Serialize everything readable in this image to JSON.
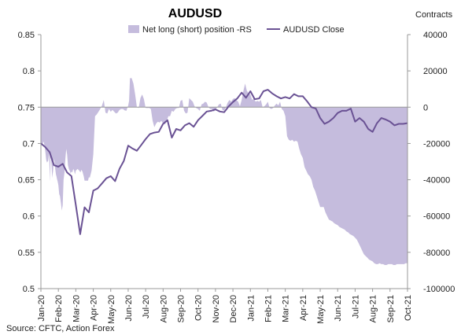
{
  "chart_data": {
    "type": "line",
    "title": "AUDUSD",
    "right_axis_label": "Contracts",
    "source": "Source: CFTC, Action Forex",
    "left_axis": {
      "min": 0.5,
      "max": 0.85,
      "ticks": [
        "0.5",
        "0.55",
        "0.6",
        "0.65",
        "0.7",
        "0.75",
        "0.8",
        "0.85"
      ]
    },
    "right_axis": {
      "min": -100000,
      "max": 40000,
      "ticks": [
        "-100000",
        "-80000",
        "-60000",
        "-40000",
        "-20000",
        "0",
        "20000",
        "40000"
      ]
    },
    "x_tick_labels": [
      "Jan-20",
      "Feb-20",
      "Mar-20",
      "Apr-20",
      "May-20",
      "Jun-20",
      "Jul-20",
      "Aug-20",
      "Sep-20",
      "Oct-20",
      "Nov-20",
      "Dec-20",
      "Jan-21",
      "Feb-21",
      "Mar-21",
      "Apr-21",
      "May-21",
      "Jun-21",
      "Jul-21",
      "Aug-21",
      "Sep-21",
      "Oct-21"
    ],
    "legend": {
      "position": "top",
      "area_name": "Net long (short) position -RS",
      "line_name": "AUDUSD Close"
    },
    "colors": {
      "area": "#c5bcdd",
      "line": "#6a5294",
      "axis": "#999999"
    },
    "series": [
      {
        "name": "Net long (short) position -RS",
        "type": "area",
        "axis": "right",
        "t": [
          0,
          0.04,
          0.16,
          0.22,
          0.27,
          0.3,
          0.35,
          0.42,
          0.47,
          0.52,
          0.56,
          0.61,
          0.65,
          0.7,
          0.74,
          0.78,
          0.82,
          0.86,
          0.89,
          0.92,
          0.96,
          1.0,
          1.05,
          1.09,
          1.15,
          1.2,
          1.25,
          1.3,
          1.35,
          1.4,
          1.45,
          1.5,
          1.55,
          1.6,
          1.65,
          1.7,
          1.75,
          1.8,
          1.85,
          1.9,
          1.95,
          2.0,
          2.05,
          2.1,
          2.2,
          2.26,
          2.32,
          2.38,
          2.45,
          2.5,
          2.6,
          2.7,
          2.75,
          2.8,
          2.9,
          3.0,
          3.1,
          3.2,
          3.3,
          3.4,
          3.5,
          3.6,
          3.7,
          3.8,
          3.9,
          4.0,
          4.1,
          4.2,
          4.3,
          4.4,
          4.5,
          4.6,
          4.7,
          4.8,
          4.9,
          5.0,
          5.05,
          5.1,
          5.2,
          5.3,
          5.4,
          5.5,
          5.6,
          5.7,
          5.8,
          5.9,
          6.0,
          6.1,
          6.2,
          6.3,
          6.4,
          6.5,
          6.6,
          6.7,
          6.8,
          6.9,
          7.0,
          7.1,
          7.2,
          7.3,
          7.4,
          7.5,
          7.6,
          7.7,
          7.8,
          7.9,
          8.0,
          8.1,
          8.2,
          8.3,
          8.4,
          8.5,
          8.6,
          8.7,
          8.8,
          8.9,
          9.0,
          9.1,
          9.2,
          9.3,
          9.4,
          9.5,
          9.6,
          9.7,
          9.8,
          9.9,
          10.0,
          10.1,
          10.2,
          10.3,
          10.4,
          10.5,
          10.6,
          10.7,
          10.8,
          10.9,
          11.0,
          11.1,
          11.2,
          11.3,
          11.4,
          11.5,
          11.6,
          11.7,
          11.8,
          11.9,
          12.0,
          12.1,
          12.2,
          12.3,
          12.4,
          12.5,
          12.6,
          12.7,
          12.8,
          12.9,
          13.0,
          13.1,
          13.2,
          13.3,
          13.4,
          13.5,
          13.6,
          13.7,
          13.8,
          13.9,
          14.0,
          14.1,
          14.2,
          14.3,
          14.4,
          14.5,
          14.6,
          14.7,
          14.8,
          14.9,
          15.0,
          15.1,
          15.2,
          15.3,
          15.4,
          15.5,
          15.6,
          15.7,
          15.8,
          15.9,
          16.0,
          16.1,
          16.2,
          16.3,
          16.4,
          16.5,
          16.6,
          16.7,
          16.8,
          16.9,
          17.0,
          17.1,
          17.2,
          17.3,
          17.4,
          17.5,
          17.6,
          17.7,
          17.8,
          17.9,
          18.0,
          18.1,
          18.2,
          18.3,
          18.4,
          18.5,
          18.6,
          18.7,
          18.8,
          18.9,
          19.0,
          19.1,
          19.2,
          19.3,
          19.4,
          19.5,
          19.6,
          19.7,
          19.8,
          19.9,
          20.0,
          20.1,
          20.2,
          20.3,
          20.4,
          20.5,
          20.6,
          20.7,
          20.8,
          20.9,
          21.0
        ],
        "values": [
          -20500,
          -21000,
          -19000,
          -22000,
          -26000,
          -29000,
          -30500,
          -29500,
          -25000,
          -41000,
          -26000,
          -32000,
          -39000,
          -35000,
          -28500,
          -30000,
          -34000,
          -37000,
          -38000,
          -39500,
          -41000,
          -43000,
          -48000,
          -49000,
          -53000,
          -57000,
          -54000,
          -40000,
          -36000,
          -28500,
          -23000,
          -26000,
          -32000,
          -34000,
          -35000,
          -36500,
          -35500,
          -36000,
          -34000,
          -35000,
          -37000,
          -35000,
          -34500,
          -34000,
          -35000,
          -36000,
          -34500,
          -35500,
          -38000,
          -40500,
          -40500,
          -40500,
          -38500,
          -39000,
          -35000,
          -26000,
          -5000,
          -4000,
          -2500,
          -1000,
          1000,
          4000,
          -3000,
          -3500,
          -1000,
          -2500,
          -1500,
          -2500,
          -3500,
          -3000,
          -1500,
          -1000,
          -1000,
          -1800,
          -2000,
          1000,
          3500,
          16000,
          16000,
          13000,
          7000,
          0,
          -500,
          5000,
          7000,
          4500,
          -400,
          -500,
          -400,
          -1000,
          -7500,
          -11000,
          -9000,
          -8000,
          -8500,
          -7500,
          -9000,
          -9500,
          -8000,
          -5000,
          -5000,
          -2000,
          -2500,
          -1000,
          -500,
          -500,
          3500,
          4000,
          -2000,
          -3500,
          -3000,
          5000,
          4000,
          3000,
          500,
          -500,
          -1000,
          -2000,
          1500,
          2000,
          3000,
          2500,
          0,
          -1000,
          -1000,
          -2500,
          -1500,
          0,
          1500,
          2000,
          -1500,
          -2000,
          0,
          2500,
          4000,
          3000,
          4500,
          5000,
          4000,
          3000,
          500,
          4000,
          9000,
          13000,
          9000,
          7500,
          7000,
          4000,
          5000,
          3000,
          3500,
          3000,
          4000,
          0,
          500,
          1500,
          3000,
          -500,
          -1000,
          -500,
          1000,
          2000,
          1000,
          3000,
          -1000,
          -2000,
          -5000,
          -16000,
          -18000,
          -18500,
          -18000,
          -19000,
          -18500,
          -19000,
          -23000,
          -26000,
          -28000,
          -33000,
          -35000,
          -37000,
          -38000,
          -40000,
          -44000,
          -46000,
          -49000,
          -52000,
          -55000,
          -55000,
          -55000,
          -58000,
          -60000,
          -62000,
          -62500,
          -63000,
          -64000,
          -64500,
          -65000,
          -66000,
          -66500,
          -67000,
          -67500,
          -68500,
          -69000,
          -70000,
          -70500,
          -71000,
          -72000,
          -73000,
          -75000,
          -77000,
          -79000,
          -81000,
          -82000,
          -83000,
          -84000,
          -84500,
          -85000,
          -86000,
          -86500,
          -86500,
          -86000,
          -86500,
          -86500,
          -87000,
          -87000,
          -86500,
          -86500,
          -86500,
          -87000,
          -87000,
          -86500,
          -86500,
          -86500,
          -86500,
          -86500,
          -86000,
          -86000
        ]
      },
      {
        "name": "AUDUSD Close",
        "type": "line",
        "axis": "left",
        "t": [
          0,
          0.25,
          0.5,
          0.75,
          1.0,
          1.25,
          1.5,
          1.75,
          2.0,
          2.25,
          2.5,
          2.75,
          3.0,
          3.25,
          3.5,
          3.75,
          4.0,
          4.25,
          4.5,
          4.75,
          5.0,
          5.25,
          5.5,
          5.75,
          6.0,
          6.25,
          6.5,
          6.75,
          7.0,
          7.25,
          7.5,
          7.75,
          8.0,
          8.25,
          8.5,
          8.75,
          9.0,
          9.25,
          9.5,
          9.75,
          10.0,
          10.25,
          10.5,
          10.75,
          11.0,
          11.25,
          11.5,
          11.75,
          12.0,
          12.25,
          12.5,
          12.75,
          13.0,
          13.25,
          13.5,
          13.75,
          14.0,
          14.25,
          14.5,
          14.75,
          15.0,
          15.25,
          15.5,
          15.75,
          16.0,
          16.25,
          16.5,
          16.75,
          17.0,
          17.25,
          17.5,
          17.75,
          18.0,
          18.25,
          18.5,
          18.75,
          19.0,
          19.25,
          19.5,
          19.75,
          20.0,
          20.25,
          20.5,
          20.75,
          21.0
        ],
        "values": [
          0.7,
          0.695,
          0.688,
          0.67,
          0.668,
          0.672,
          0.66,
          0.655,
          0.615,
          0.575,
          0.612,
          0.605,
          0.635,
          0.638,
          0.645,
          0.652,
          0.655,
          0.648,
          0.665,
          0.676,
          0.697,
          0.693,
          0.69,
          0.698,
          0.706,
          0.713,
          0.715,
          0.716,
          0.727,
          0.732,
          0.708,
          0.72,
          0.718,
          0.725,
          0.728,
          0.723,
          0.732,
          0.738,
          0.744,
          0.745,
          0.747,
          0.744,
          0.743,
          0.751,
          0.757,
          0.762,
          0.77,
          0.763,
          0.772,
          0.761,
          0.762,
          0.772,
          0.774,
          0.769,
          0.765,
          0.762,
          0.764,
          0.762,
          0.768,
          0.765,
          0.765,
          0.758,
          0.75,
          0.748,
          0.735,
          0.727,
          0.73,
          0.735,
          0.742,
          0.745,
          0.745,
          0.748,
          0.73,
          0.735,
          0.73,
          0.72,
          0.716,
          0.728,
          0.735,
          0.733,
          0.73,
          0.725,
          0.727,
          0.727,
          0.728
        ]
      }
    ]
  }
}
